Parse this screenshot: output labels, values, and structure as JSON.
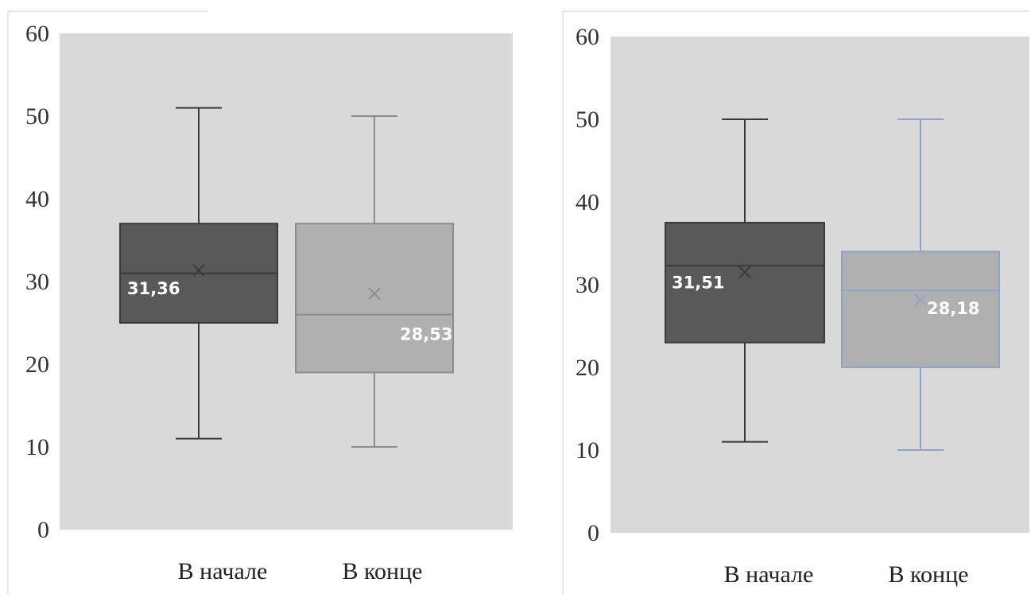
{
  "chart_data": [
    {
      "type": "box",
      "ylim": [
        0,
        60
      ],
      "yticks": [
        "0",
        "10",
        "20",
        "30",
        "40",
        "50",
        "60"
      ],
      "grid": false,
      "categories": [
        "В начале",
        "В конце"
      ],
      "boxes": [
        {
          "category": "В начале",
          "min": 11,
          "q1": 25,
          "median": 31,
          "q3": 37,
          "max": 51,
          "mean": 31.36,
          "mean_label": "31,36",
          "fill": "#595959",
          "line": "#3a3a3a",
          "label_color": "#ffffff"
        },
        {
          "category": "В конце",
          "min": 10,
          "q1": 19,
          "median": 26,
          "q3": 37,
          "max": 50,
          "mean": 28.53,
          "mean_label": "28,53",
          "fill": "#b0b0b0",
          "line": "#8c8c8c",
          "label_color": "#ffffff"
        }
      ]
    },
    {
      "type": "box",
      "ylim": [
        0,
        60
      ],
      "yticks": [
        "0",
        "10",
        "20",
        "30",
        "40",
        "50",
        "60"
      ],
      "grid": false,
      "categories": [
        "В начале",
        "В конце"
      ],
      "boxes": [
        {
          "category": "В начале",
          "min": 11,
          "q1": 23,
          "median": 32.3,
          "q3": 37.5,
          "max": 50,
          "mean": 31.51,
          "mean_label": "31,51",
          "fill": "#595959",
          "line": "#3a3a3a",
          "label_color": "#ffffff"
        },
        {
          "category": "В конце",
          "min": 10,
          "q1": 20,
          "median": 29.3,
          "q3": 34,
          "max": 50,
          "mean": 28.18,
          "mean_label": "28,18",
          "fill": "#b0b0b0",
          "line": "#8fa3c9",
          "label_color": "#ffffff"
        }
      ]
    }
  ],
  "colors": {
    "plot_background": "#d9d9d9",
    "page_background": "#ffffff"
  }
}
